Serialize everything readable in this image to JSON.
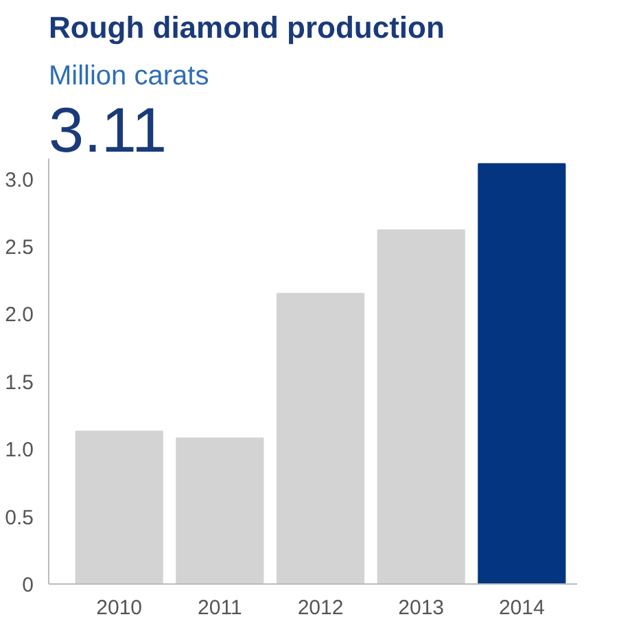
{
  "chart_data": {
    "type": "bar",
    "title": "Rough diamond production",
    "subtitle": "Million carats",
    "annotations": [
      "3.11"
    ],
    "categories": [
      "2010",
      "2011",
      "2012",
      "2013",
      "2014"
    ],
    "values": [
      1.13,
      1.08,
      2.15,
      2.62,
      3.11
    ],
    "colors": [
      "#d3d3d3",
      "#d3d3d3",
      "#d3d3d3",
      "#d3d3d3",
      "#033580"
    ],
    "ylim": [
      0,
      3.15
    ],
    "yticks": [
      0,
      {
        "value": 0.5,
        "label": "0.5"
      },
      {
        "value": 1,
        "label": "1.0"
      },
      {
        "value": 1.5,
        "label": "1.5"
      },
      {
        "value": 2,
        "label": "2.0"
      },
      {
        "value": 2.5,
        "label": "2.5"
      },
      {
        "value": 3,
        "label": "3.0"
      }
    ],
    "grid": false
  }
}
